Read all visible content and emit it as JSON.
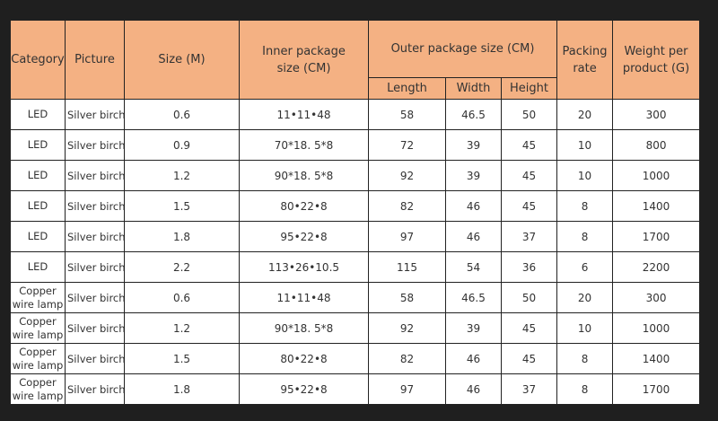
{
  "colors": {
    "header_bg": "#f4b183",
    "background": "#1f1f1f"
  },
  "headers": {
    "category": "Category",
    "picture": "Picture",
    "size": "Size (M)",
    "inner": "Inner package size (CM)",
    "outer": "Outer package size (CM)",
    "length": "Length",
    "width": "Width",
    "height": "Height",
    "packing": "Packing rate",
    "weight": "Weight per product (G)"
  },
  "rows": [
    {
      "category": "LED",
      "picture": "Silver birch",
      "size": "0.6",
      "inner": "11•11•48",
      "length": "58",
      "width": "46.5",
      "height": "50",
      "packing": "20",
      "weight": "300"
    },
    {
      "category": "LED",
      "picture": "Silver birch",
      "size": "0.9",
      "inner": "70*18. 5*8",
      "length": "72",
      "width": "39",
      "height": "45",
      "packing": "10",
      "weight": "800"
    },
    {
      "category": "LED",
      "picture": "Silver birch",
      "size": "1.2",
      "inner": "90*18. 5*8",
      "length": "92",
      "width": "39",
      "height": "45",
      "packing": "10",
      "weight": "1000"
    },
    {
      "category": "LED",
      "picture": "Silver birch",
      "size": "1.5",
      "inner": "80•22•8",
      "length": "82",
      "width": "46",
      "height": "45",
      "packing": "8",
      "weight": "1400"
    },
    {
      "category": "LED",
      "picture": "Silver birch",
      "size": "1.8",
      "inner": "95•22•8",
      "length": "97",
      "width": "46",
      "height": "37",
      "packing": "8",
      "weight": "1700"
    },
    {
      "category": "LED",
      "picture": "Silver birch",
      "size": "2.2",
      "inner": "113•26•10.5",
      "length": "115",
      "width": "54",
      "height": "36",
      "packing": "6",
      "weight": "2200"
    },
    {
      "category": "Copper wire lamp",
      "picture": "Silver birch",
      "size": "0.6",
      "inner": "11•11•48",
      "length": "58",
      "width": "46.5",
      "height": "50",
      "packing": "20",
      "weight": "300"
    },
    {
      "category": "Copper wire lamp",
      "picture": "Silver birch",
      "size": "1.2",
      "inner": "90*18. 5*8",
      "length": "92",
      "width": "39",
      "height": "45",
      "packing": "10",
      "weight": "1000"
    },
    {
      "category": "Copper wire lamp",
      "picture": "Silver birch",
      "size": "1.5",
      "inner": "80•22•8",
      "length": "82",
      "width": "46",
      "height": "45",
      "packing": "8",
      "weight": "1400"
    },
    {
      "category": "Copper wire lamp",
      "picture": "Silver birch",
      "size": "1.8",
      "inner": "95•22•8",
      "length": "97",
      "width": "46",
      "height": "37",
      "packing": "8",
      "weight": "1700"
    }
  ]
}
